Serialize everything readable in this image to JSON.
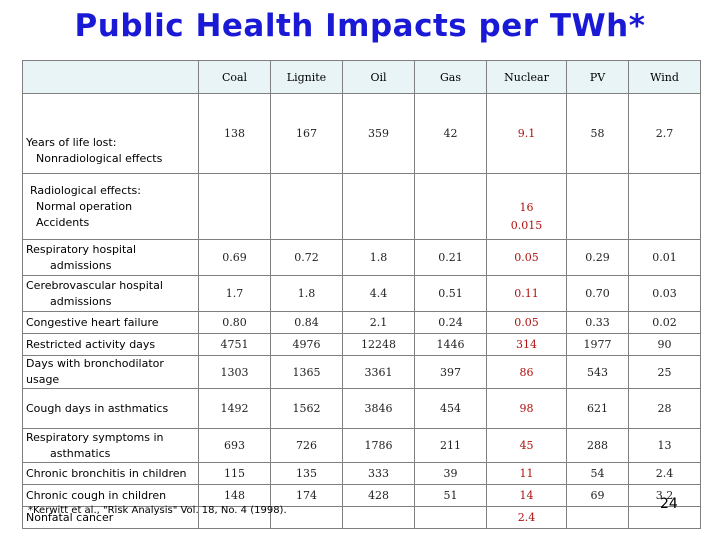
{
  "title": "Public Health Impacts per TWh*",
  "columns": [
    "Coal",
    "Lignite",
    "Oil",
    "Gas",
    "Nuclear",
    "PV",
    "Wind"
  ],
  "yll_label": "Years of life lost:",
  "nonrad_label": "Nonradiological effects",
  "nonrad_values": [
    "138",
    "167",
    "359",
    "42",
    "9.1",
    "58",
    "2.7"
  ],
  "rad_label": "Radiological effects:",
  "normal_label": "Normal operation",
  "accidents_label": "Accidents",
  "normal_nuclear": "16",
  "accidents_nuclear": "0.015",
  "rows": [
    {
      "label1": "Respiratory hospital",
      "label2": "admissions",
      "values": [
        "0.69",
        "0.72",
        "1.8",
        "0.21",
        "0.05",
        "0.29",
        "0.01"
      ]
    },
    {
      "label1": "Cerebrovascular hospital",
      "label2": "admissions",
      "values": [
        "1.7",
        "1.8",
        "4.4",
        "0.51",
        "0.11",
        "0.70",
        "0.03"
      ]
    },
    {
      "label1": "Congestive heart failure",
      "label2": "",
      "values": [
        "0.80",
        "0.84",
        "2.1",
        "0.24",
        "0.05",
        "0.33",
        "0.02"
      ]
    },
    {
      "label1": "Restricted activity days",
      "label2": "",
      "values": [
        "4751",
        "4976",
        "12248",
        "1446",
        "314",
        "1977",
        "90"
      ]
    },
    {
      "label1": "Days with bronchodilator usage",
      "label2": "",
      "values": [
        "1303",
        "1365",
        "3361",
        "397",
        "86",
        "543",
        "25"
      ]
    },
    {
      "label1": "Cough days in asthmatics",
      "label2": "",
      "values": [
        "1492",
        "1562",
        "3846",
        "454",
        "98",
        "621",
        "28"
      ]
    },
    {
      "label1": "Respiratory symptoms in",
      "label2": "asthmatics",
      "values": [
        "693",
        "726",
        "1786",
        "211",
        "45",
        "288",
        "13"
      ]
    },
    {
      "label1": "Chronic bronchitis in children",
      "label2": "",
      "values": [
        "115",
        "135",
        "333",
        "39",
        "11",
        "54",
        "2.4"
      ]
    },
    {
      "label1": "Chronic cough in children",
      "label2": "",
      "values": [
        "148",
        "174",
        "428",
        "51",
        "14",
        "69",
        "3.2"
      ]
    }
  ],
  "cancer_label": "Nonfatal cancer",
  "cancer_nuclear": "2.4",
  "citation": "*Kerwitt et al., \"Risk Analysis\" Vol. 18, No. 4 (1998).",
  "page_number": "24",
  "colors": {
    "title": "#1a1ad6",
    "header_bg": "#e9f4f7",
    "nuclear_text": "#b01010",
    "grid": "#7f7f7f"
  }
}
